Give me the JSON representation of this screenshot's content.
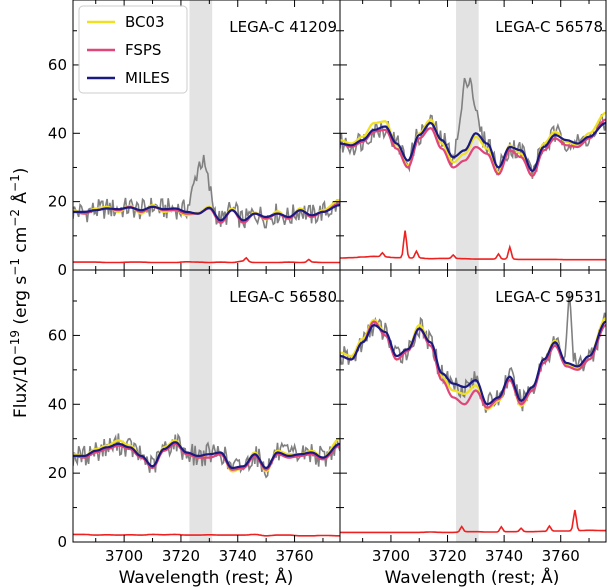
{
  "chart_data": {
    "type": "line",
    "xlabel": "Wavelength (rest; Å)",
    "ylabel_parts": {
      "prefix": "Flux/10",
      "exp1": "−19",
      "units_a": " (erg s",
      "exp2": "−1",
      "units_b": " cm",
      "exp3": "−2",
      "units_c": " Å",
      "exp4": "−1",
      "units_d": ")"
    },
    "xlim": [
      3682,
      3776
    ],
    "xticks": [
      3700,
      3720,
      3740,
      3760
    ],
    "shaded_band": [
      3723,
      3731
    ],
    "colors": {
      "BC03": "#f0e020",
      "FSPS": "#e0457b",
      "MILES": "#1a1a80",
      "data": "#808080",
      "error": "#ee2020",
      "band": "#e3e3e3"
    },
    "legend": [
      "BC03",
      "FSPS",
      "MILES"
    ],
    "panels": [
      {
        "label": "LEGA-C 41209",
        "ylim": [
          0,
          79
        ],
        "yticks": [
          0,
          20,
          40,
          60
        ],
        "show_yticks": true,
        "show_xticks": false,
        "x_nodes": [
          3682,
          3686,
          3690,
          3694,
          3698,
          3702,
          3706,
          3710,
          3714,
          3718,
          3722,
          3726,
          3730,
          3734,
          3738,
          3742,
          3746,
          3750,
          3754,
          3758,
          3762,
          3766,
          3770,
          3776
        ],
        "miles": [
          17,
          17,
          17.5,
          18,
          17.8,
          18.3,
          17.5,
          18.5,
          17.8,
          18,
          17,
          16.5,
          18.2,
          14.5,
          17.5,
          14.5,
          16.5,
          15.5,
          16.5,
          15.5,
          17.5,
          16,
          17,
          19
        ],
        "bc03": [
          17.5,
          16.5,
          18,
          18.5,
          17,
          18.8,
          16.5,
          19,
          17,
          17.5,
          16,
          16.8,
          18.5,
          13.8,
          18,
          13.8,
          16.8,
          14.8,
          17.2,
          15,
          18,
          15.5,
          17.5,
          20.5
        ],
        "fsps": [
          17,
          16.5,
          17.5,
          18,
          17.5,
          18.5,
          17,
          18.5,
          17.5,
          17.5,
          16.5,
          16.5,
          18,
          13.8,
          17.5,
          13.8,
          16.5,
          15,
          16.5,
          15,
          17.5,
          15.5,
          17,
          19.5
        ],
        "data": [
          17,
          13,
          19,
          14,
          20,
          16,
          15,
          21,
          18,
          16,
          22,
          15,
          19,
          12,
          20,
          17,
          14,
          18,
          15,
          21,
          17,
          13,
          18,
          19
        ],
        "data_emission": {
          "center": 3727,
          "width": 2.2,
          "height": 15
        },
        "error": [
          2.3,
          2.3,
          2.3,
          2.2,
          2.2,
          2.3,
          2.3,
          2.2,
          2.2,
          2.2,
          2.4,
          2.3,
          2.2,
          2.3,
          2.2,
          2.6,
          2.2,
          2.2,
          2.2,
          2.3,
          2.2,
          2.3,
          2.2,
          2.2
        ],
        "error_spikes": [
          [
            3743,
            1.0
          ],
          [
            3765,
            0.8
          ]
        ]
      },
      {
        "label": "LEGA-C 56578",
        "ylim": [
          0,
          79
        ],
        "yticks": [
          0,
          20,
          40,
          60
        ],
        "show_yticks": false,
        "show_xticks": false,
        "x_nodes": [
          3682,
          3686,
          3690,
          3694,
          3698,
          3702,
          3706,
          3710,
          3714,
          3718,
          3722,
          3726,
          3730,
          3734,
          3738,
          3742,
          3746,
          3750,
          3754,
          3758,
          3762,
          3766,
          3770,
          3776
        ],
        "miles": [
          37,
          36.5,
          38,
          41,
          42,
          37,
          32,
          39.5,
          43,
          38,
          33,
          35,
          40,
          37,
          30,
          36,
          35,
          29,
          36,
          39.5,
          38,
          37,
          39,
          43
        ],
        "bc03": [
          38,
          37,
          39,
          43,
          43.5,
          36.5,
          30.5,
          40,
          44,
          37,
          31.5,
          34,
          39,
          35.5,
          28.5,
          36.5,
          34,
          27.5,
          37,
          40.5,
          37.5,
          36.5,
          40,
          46
        ],
        "fsps": [
          37,
          36,
          37.5,
          40.5,
          41,
          35.5,
          30,
          38.5,
          41.5,
          35.5,
          30,
          32,
          36,
          34,
          28,
          35,
          33,
          27.5,
          35,
          38.5,
          36.5,
          36,
          38.5,
          44
        ],
        "data": [
          33,
          38,
          30,
          45,
          40,
          33,
          29,
          42,
          47,
          36,
          31,
          40,
          39,
          33,
          28,
          38,
          33,
          26,
          40,
          41,
          36,
          39,
          36,
          44
        ],
        "data_emission": {
          "center": 3727,
          "width": 2.0,
          "height": 21
        },
        "error": [
          3.5,
          3.6,
          3.8,
          4.0,
          3.8,
          3.6,
          3.5,
          3.5,
          3.3,
          3.4,
          3.4,
          3.3,
          3.2,
          3.2,
          3.2,
          3.2,
          3.1,
          3.1,
          3.1,
          3.1,
          3.0,
          3.0,
          3.0,
          3.0
        ],
        "error_spikes": [
          [
            3697,
            1.2
          ],
          [
            3705,
            8.0
          ],
          [
            3709,
            2.0
          ],
          [
            3722,
            1.0
          ],
          [
            3738,
            1.5
          ],
          [
            3742,
            3.5
          ]
        ]
      },
      {
        "label": "LEGA-C 56580",
        "ylim": [
          0,
          79
        ],
        "yticks": [
          0,
          20,
          40,
          60
        ],
        "show_yticks": true,
        "show_xticks": true,
        "x_nodes": [
          3682,
          3686,
          3690,
          3694,
          3698,
          3702,
          3706,
          3710,
          3714,
          3718,
          3722,
          3726,
          3730,
          3734,
          3738,
          3742,
          3746,
          3750,
          3754,
          3758,
          3762,
          3766,
          3770,
          3776
        ],
        "miles": [
          25,
          25,
          26.5,
          27.5,
          28.5,
          27.5,
          25,
          22,
          27,
          29,
          26,
          25,
          25.5,
          26,
          21.5,
          22,
          25.5,
          21.5,
          26,
          25,
          25.5,
          26,
          24.5,
          28.5
        ],
        "bc03": [
          25.5,
          25,
          27,
          28,
          29.5,
          28,
          25,
          21.5,
          27.5,
          29.5,
          25.5,
          24.5,
          25.5,
          26,
          20.5,
          21.5,
          26,
          20.5,
          26.5,
          25.5,
          25.5,
          26.5,
          24.5,
          30
        ],
        "fsps": [
          25,
          24.5,
          26,
          27,
          28,
          27,
          24.5,
          21.5,
          26.5,
          28.5,
          25.5,
          24.5,
          24.5,
          25.5,
          21,
          21.5,
          25,
          21,
          25.5,
          24.5,
          25,
          25.5,
          24,
          28
        ],
        "data": [
          24,
          28,
          22,
          30,
          27,
          31,
          24,
          20,
          27,
          30,
          24,
          27,
          25,
          27,
          22,
          21,
          26,
          24,
          23,
          27,
          25,
          26,
          22,
          27
        ],
        "data_emission": null,
        "error": [
          2.2,
          2.2,
          2.0,
          2.1,
          2.0,
          2.1,
          2.0,
          2.2,
          2.1,
          2.2,
          2.0,
          2.0,
          2.1,
          2.0,
          2.0,
          2.0,
          2.2,
          1.8,
          2.0,
          2.0,
          1.8,
          1.8,
          1.9,
          1.8
        ],
        "error_spikes": []
      },
      {
        "label": "LEGA-C 59531",
        "ylim": [
          0,
          79
        ],
        "yticks": [
          0,
          20,
          40,
          60
        ],
        "show_yticks": false,
        "show_xticks": true,
        "x_nodes": [
          3682,
          3686,
          3690,
          3694,
          3698,
          3702,
          3706,
          3710,
          3714,
          3718,
          3722,
          3726,
          3730,
          3734,
          3738,
          3742,
          3746,
          3750,
          3754,
          3758,
          3762,
          3766,
          3770,
          3776
        ],
        "miles": [
          54,
          53,
          58,
          63,
          61,
          54,
          56,
          62,
          58,
          49,
          46,
          45,
          47,
          40,
          42,
          48,
          41,
          45,
          53,
          58,
          52,
          51,
          54,
          64
        ],
        "bc03": [
          55,
          54,
          59,
          64.5,
          61,
          53,
          56,
          63,
          58,
          48,
          44,
          43,
          45.5,
          38.5,
          41,
          47.5,
          39.5,
          44,
          53,
          58.5,
          51.5,
          50.5,
          54,
          65
        ],
        "fsps": [
          54,
          53,
          58,
          64,
          60,
          53,
          55.5,
          62,
          57,
          47,
          42,
          40,
          44,
          39,
          41.5,
          47,
          40,
          44,
          52,
          57,
          51,
          50,
          53,
          63
        ],
        "data": [
          52,
          55,
          60,
          62,
          58,
          55,
          54,
          63,
          60,
          50,
          45,
          48,
          45,
          40,
          46,
          51,
          40,
          47,
          56,
          60,
          55,
          52,
          56,
          63
        ],
        "data_emission": {
          "center": 3763,
          "width": 0.8,
          "height": 18
        },
        "error": [
          2.8,
          2.8,
          2.8,
          2.8,
          2.8,
          2.8,
          2.8,
          2.8,
          2.9,
          2.8,
          2.8,
          3.0,
          3.0,
          2.9,
          2.9,
          3.0,
          3.0,
          3.0,
          3.1,
          3.2,
          3.2,
          3.3,
          3.4,
          3.3
        ],
        "error_spikes": [
          [
            3725,
            1.5
          ],
          [
            3739,
            1.5
          ],
          [
            3746,
            1.0
          ],
          [
            3756,
            1.5
          ],
          [
            3765,
            6.0
          ]
        ]
      }
    ]
  }
}
